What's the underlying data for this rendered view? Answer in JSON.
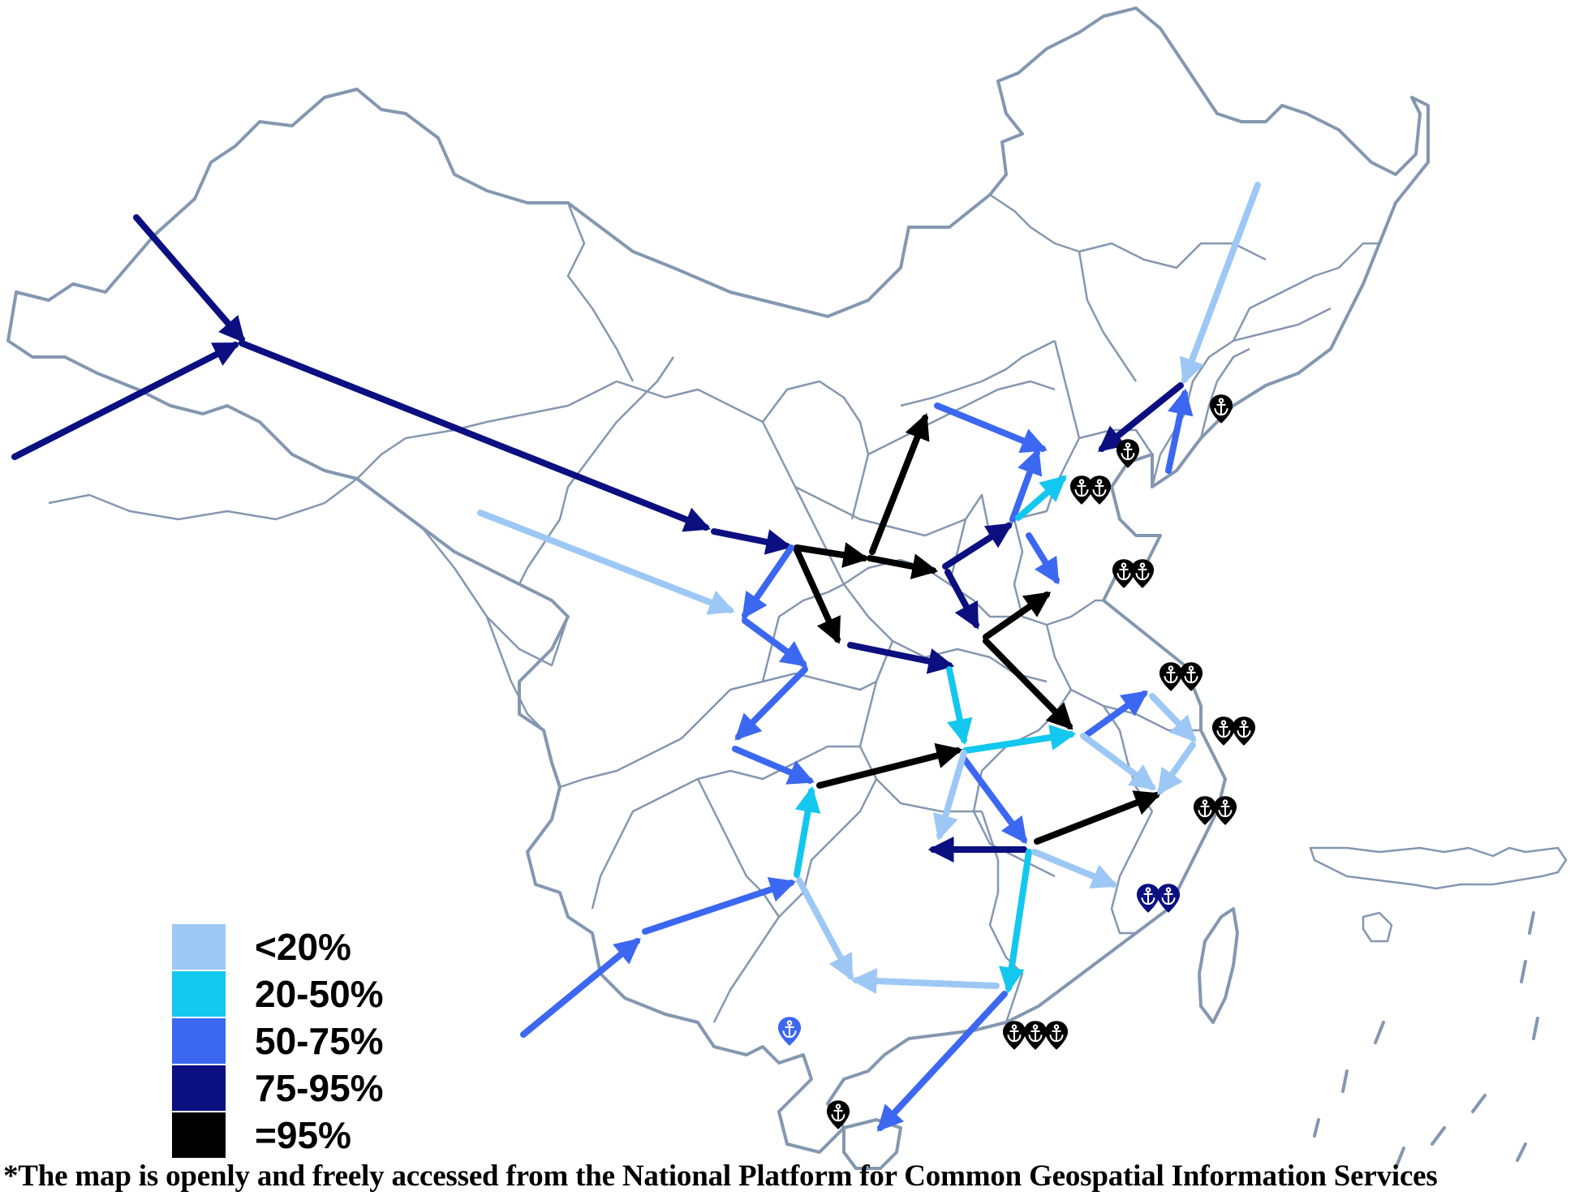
{
  "legend": {
    "items": [
      {
        "label": "<20%",
        "color": "#9dc8f5"
      },
      {
        "label": "20-50%",
        "color": "#13c7ef"
      },
      {
        "label": "50-75%",
        "color": "#3c67f0"
      },
      {
        "label": "75-95%",
        "color": "#0b0f80"
      },
      {
        "label": "=95%",
        "color": "#000000"
      }
    ]
  },
  "footnote": "*The map is openly and freely accessed from the National Platform for Common Geospatial Information Services",
  "colors": {
    "border": "#8497b0",
    "port_black": "#000000",
    "port_navy": "#0b0f80",
    "port_blue": "#3c67f0"
  },
  "map_icons": [
    "anchor-port-marker-icon",
    "flow-arrow-icon"
  ]
}
